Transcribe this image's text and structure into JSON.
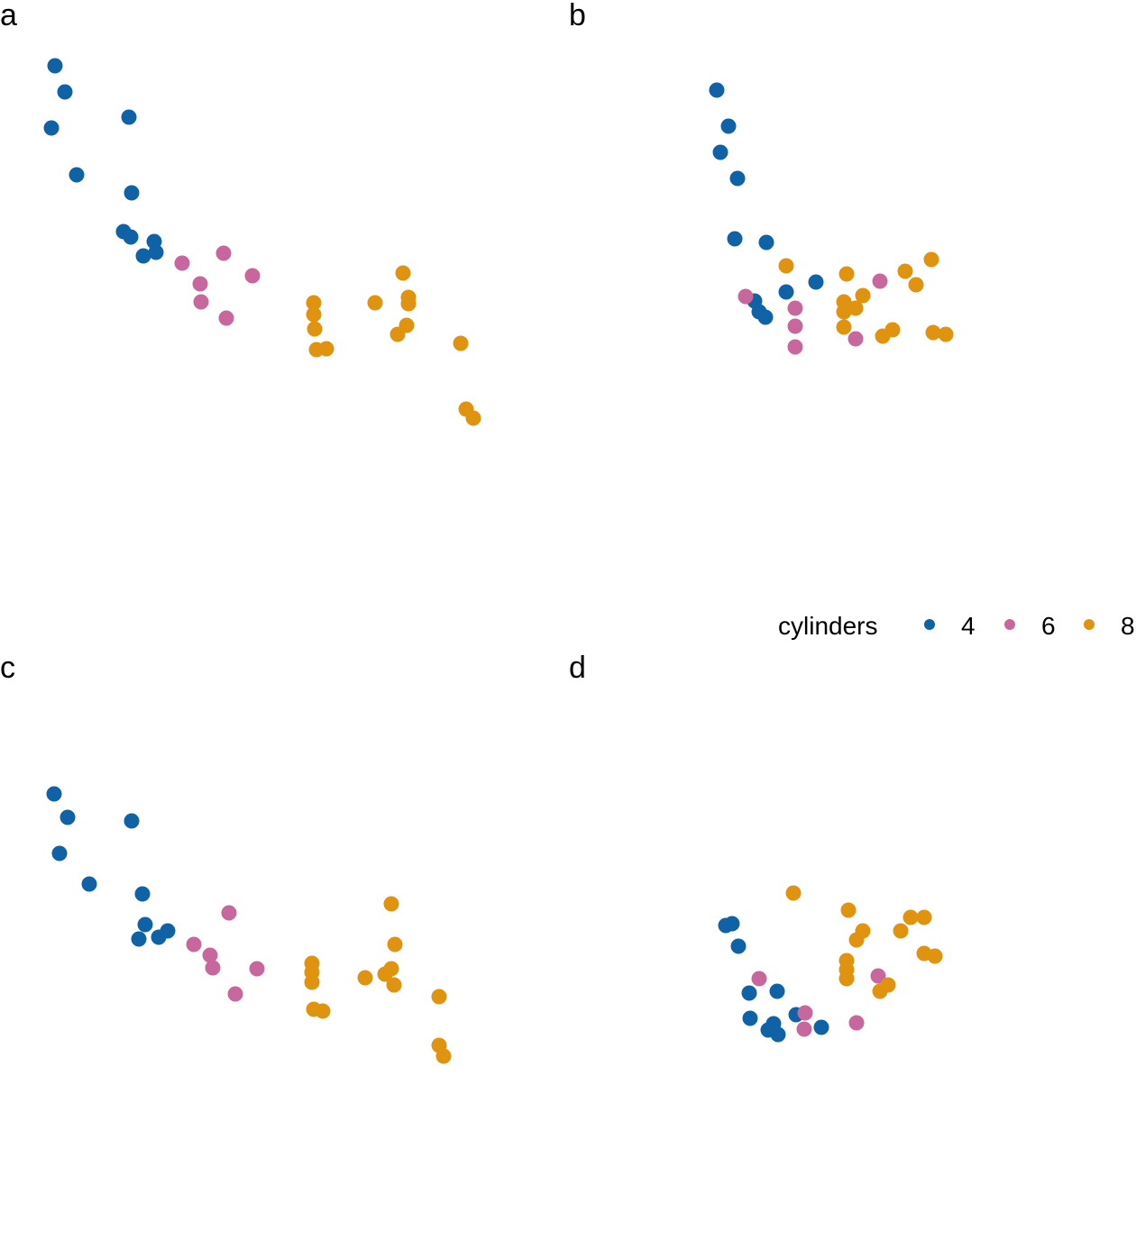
{
  "legend": {
    "title": "cylinders",
    "entries": [
      {
        "label": "4",
        "color": "#0F62A5"
      },
      {
        "label": "6",
        "color": "#C8679E"
      },
      {
        "label": "8",
        "color": "#E0930F"
      }
    ]
  },
  "chart_data": [
    {
      "type": "scatter",
      "panel": "a",
      "title": "",
      "xlabel": "",
      "ylabel": "",
      "xlim": [
        0,
        580
      ],
      "ylim": [
        -620,
        0
      ],
      "grid": false,
      "axes": false,
      "series": [
        {
          "name": "4",
          "points": [
            [
              61,
              -73
            ],
            [
              72,
              -102
            ],
            [
              57,
              -142
            ],
            [
              143,
              -130
            ],
            [
              85,
              -194
            ],
            [
              146,
              -214
            ],
            [
              137,
              -257
            ],
            [
              145,
              -263
            ],
            [
              171,
              -268
            ],
            [
              159,
              -284
            ],
            [
              173,
              -280
            ]
          ]
        },
        {
          "name": "6",
          "points": [
            [
              202,
              -292
            ],
            [
              248,
              -281
            ],
            [
              222,
              -315
            ],
            [
              280,
              -306
            ],
            [
              223,
              -335
            ],
            [
              251,
              -353
            ]
          ]
        },
        {
          "name": "8",
          "points": [
            [
              348,
              -336
            ],
            [
              348,
              -349
            ],
            [
              349,
              -365
            ],
            [
              351,
              -388
            ],
            [
              362,
              -387
            ],
            [
              416,
              -336
            ],
            [
              447,
              -303
            ],
            [
              453,
              -330
            ],
            [
              453,
              -337
            ],
            [
              451,
              -361
            ],
            [
              441,
              -371
            ],
            [
              511,
              -381
            ],
            [
              517,
              -454
            ],
            [
              525,
              -464
            ]
          ]
        }
      ]
    },
    {
      "type": "scatter",
      "panel": "b",
      "title": "",
      "xlabel": "",
      "ylabel": "",
      "xlim": [
        0,
        580
      ],
      "ylim": [
        -620,
        0
      ],
      "grid": false,
      "axes": false,
      "series": [
        {
          "name": "4",
          "points": [
            [
              164,
              -100
            ],
            [
              177,
              -140
            ],
            [
              168,
              -169
            ],
            [
              187,
              -198
            ],
            [
              184,
              -265
            ],
            [
              219,
              -269
            ],
            [
              274,
              -313
            ],
            [
              241,
              -324
            ],
            [
              206,
              -334
            ],
            [
              211,
              -346
            ],
            [
              218,
              -352
            ]
          ]
        },
        {
          "name": "6",
          "points": [
            [
              196,
              -329
            ],
            [
              251,
              -342
            ],
            [
              251,
              -362
            ],
            [
              251,
              -385
            ],
            [
              345,
              -312
            ],
            [
              318,
              -376
            ]
          ]
        },
        {
          "name": "8",
          "points": [
            [
              241,
              -295
            ],
            [
              308,
              -304
            ],
            [
              373,
              -301
            ],
            [
              402,
              -288
            ],
            [
              385,
              -316
            ],
            [
              326,
              -328
            ],
            [
              305,
              -335
            ],
            [
              305,
              -346
            ],
            [
              318,
              -342
            ],
            [
              305,
              -363
            ],
            [
              359,
              -366
            ],
            [
              348,
              -373
            ],
            [
              404,
              -369
            ],
            [
              418,
              -371
            ]
          ]
        }
      ]
    },
    {
      "type": "scatter",
      "panel": "c",
      "title": "",
      "xlabel": "",
      "ylabel": "",
      "xlim": [
        0,
        580
      ],
      "ylim": [
        -620,
        0
      ],
      "grid": false,
      "axes": false,
      "series": [
        {
          "name": "4",
          "points": [
            [
              60,
              -157
            ],
            [
              75,
              -183
            ],
            [
              66,
              -223
            ],
            [
              146,
              -187
            ],
            [
              99,
              -257
            ],
            [
              158,
              -268
            ],
            [
              161,
              -302
            ],
            [
              154,
              -318
            ],
            [
              176,
              -316
            ],
            [
              186,
              -309
            ]
          ]
        },
        {
          "name": "6",
          "points": [
            [
              254,
              -289
            ],
            [
              215,
              -324
            ],
            [
              233,
              -336
            ],
            [
              236,
              -350
            ],
            [
              285,
              -351
            ],
            [
              261,
              -379
            ]
          ]
        },
        {
          "name": "8",
          "points": [
            [
              434,
              -279
            ],
            [
              438,
              -324
            ],
            [
              346,
              -345
            ],
            [
              346,
              -355
            ],
            [
              346,
              -366
            ],
            [
              405,
              -361
            ],
            [
              427,
              -357
            ],
            [
              434,
              -351
            ],
            [
              437,
              -369
            ],
            [
              348,
              -396
            ],
            [
              358,
              -398
            ],
            [
              487,
              -382
            ],
            [
              487,
              -436
            ],
            [
              492,
              -448
            ]
          ]
        }
      ]
    },
    {
      "type": "scatter",
      "panel": "d",
      "title": "",
      "xlabel": "",
      "ylabel": "",
      "xlim": [
        0,
        580
      ],
      "ylim": [
        -620,
        0
      ],
      "grid": false,
      "axes": false,
      "series": [
        {
          "name": "4",
          "points": [
            [
              174,
              -303
            ],
            [
              181,
              -301
            ],
            [
              188,
              -326
            ],
            [
              200,
              -378
            ],
            [
              231,
              -376
            ],
            [
              201,
              -406
            ],
            [
              227,
              -412
            ],
            [
              221,
              -419
            ],
            [
              232,
              -424
            ],
            [
              252,
              -402
            ],
            [
              280,
              -416
            ]
          ]
        },
        {
          "name": "6",
          "points": [
            [
              211,
              -362
            ],
            [
              262,
              -400
            ],
            [
              261,
              -418
            ],
            [
              343,
              -359
            ],
            [
              319,
              -411
            ]
          ]
        },
        {
          "name": "8",
          "points": [
            [
              249,
              -267
            ],
            [
              310,
              -286
            ],
            [
              326,
              -309
            ],
            [
              319,
              -319
            ],
            [
              368,
              -309
            ],
            [
              379,
              -294
            ],
            [
              394,
              -294
            ],
            [
              308,
              -342
            ],
            [
              308,
              -352
            ],
            [
              308,
              -362
            ],
            [
              354,
              -369
            ],
            [
              345,
              -376
            ],
            [
              394,
              -334
            ],
            [
              406,
              -337
            ]
          ]
        }
      ]
    }
  ]
}
